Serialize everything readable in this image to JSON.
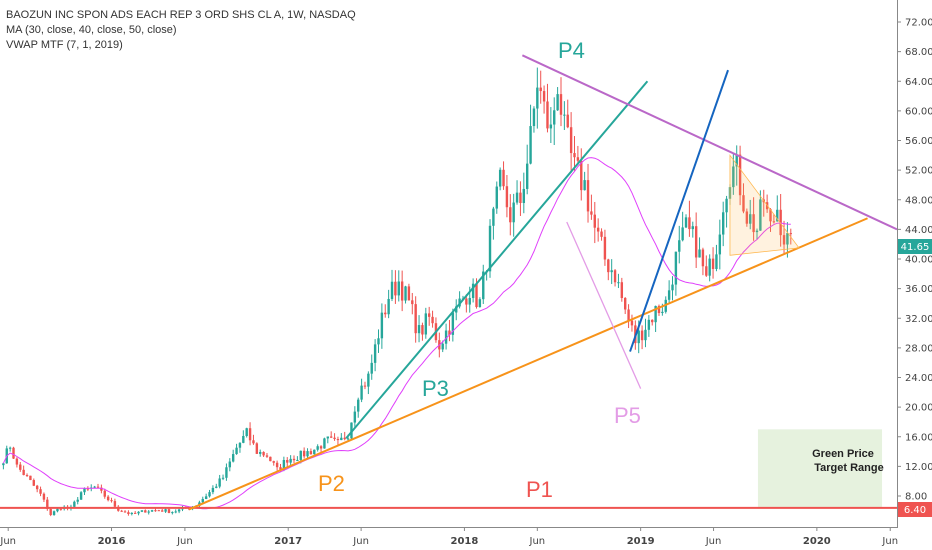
{
  "legend": {
    "symbol_line": "BAOZUN INC SPON ADS EACH REP 3 ORD SHS CL A, 1W, NASDAQ",
    "ma_line": "MA (30, close, 40, close, 50, close)",
    "vwap_line": "VWAP MTF (7, 1, 2019)"
  },
  "price_badges": {
    "last_price": "41.65",
    "p1_price": "6.40",
    "last_color": "#26a69a",
    "p1_color": "#ef5350"
  },
  "annotations": {
    "p1": "P1",
    "p2": "P2",
    "p3": "P3",
    "p4": "P4",
    "p5": "P5",
    "target_title_1": "Green Price",
    "target_title_2": "Target Range"
  },
  "colors": {
    "up": "#26a69a",
    "down": "#ef5350",
    "orange": "#f7931a",
    "teal": "#26a69a",
    "blue": "#1565c0",
    "purple": "#ba68c8",
    "magenta": "#e040fb",
    "pink": "#e39ce6",
    "red": "#ef5350",
    "target": "#e6f2de"
  },
  "chart_data": {
    "type": "candlestick",
    "title": "BAOZUN INC SPON ADS EACH REP 3 ORD SHS CL A, 1W, NASDAQ",
    "y_axis": {
      "side": "right",
      "range": [
        3,
        74
      ],
      "ticks": [
        "8.00",
        "12.00",
        "16.00",
        "20.00",
        "24.00",
        "28.00",
        "32.00",
        "36.00",
        "40.00",
        "44.00",
        "48.00",
        "52.00",
        "56.00",
        "60.00",
        "64.00",
        "68.00",
        "72.00"
      ]
    },
    "x_axis": {
      "range": [
        "2015-05-15",
        "2020-06-15"
      ],
      "ticks": [
        {
          "label": "Jun",
          "date": "2015-06-01",
          "bold": false
        },
        {
          "label": "2016",
          "date": "2016-01-01",
          "bold": true
        },
        {
          "label": "Jun",
          "date": "2016-06-01",
          "bold": false
        },
        {
          "label": "2017",
          "date": "2017-01-01",
          "bold": true
        },
        {
          "label": "Jun",
          "date": "2017-06-01",
          "bold": false
        },
        {
          "label": "2018",
          "date": "2018-01-01",
          "bold": true
        },
        {
          "label": "Jun",
          "date": "2018-06-01",
          "bold": false
        },
        {
          "label": "2019",
          "date": "2019-01-01",
          "bold": true
        },
        {
          "label": "Jun",
          "date": "2019-06-01",
          "bold": false
        },
        {
          "label": "2020",
          "date": "2020-01-01",
          "bold": true
        },
        {
          "label": "Jun",
          "date": "2020-06-01",
          "bold": false
        }
      ]
    },
    "grid": false,
    "last_price": 41.65,
    "price_path": [
      [
        "2015-05-22",
        13
      ],
      [
        "2015-06-05",
        14.8
      ],
      [
        "2015-06-19",
        12
      ],
      [
        "2015-07-10",
        10.5
      ],
      [
        "2015-08-07",
        8.2
      ],
      [
        "2015-08-28",
        5.5
      ],
      [
        "2015-09-18",
        6.5
      ],
      [
        "2015-10-09",
        6.3
      ],
      [
        "2015-10-30",
        8.5
      ],
      [
        "2015-11-27",
        9.2
      ],
      [
        "2015-12-18",
        8
      ],
      [
        "2016-01-15",
        6.2
      ],
      [
        "2016-02-12",
        5.5
      ],
      [
        "2016-03-11",
        6
      ],
      [
        "2016-04-08",
        6.1
      ],
      [
        "2016-05-06",
        5.9
      ],
      [
        "2016-06-03",
        6.3
      ],
      [
        "2016-06-24",
        6.8
      ],
      [
        "2016-07-22",
        8.5
      ],
      [
        "2016-08-19",
        10.5
      ],
      [
        "2016-09-16",
        14.5
      ],
      [
        "2016-10-07",
        16.5
      ],
      [
        "2016-10-28",
        14
      ],
      [
        "2016-11-18",
        13.5
      ],
      [
        "2016-12-09",
        11.5
      ],
      [
        "2016-12-30",
        13
      ],
      [
        "2017-01-27",
        13.5
      ],
      [
        "2017-02-24",
        14.3
      ],
      [
        "2017-03-24",
        15.5
      ],
      [
        "2017-04-14",
        15
      ],
      [
        "2017-05-05",
        16.5
      ],
      [
        "2017-05-26",
        22
      ],
      [
        "2017-06-16",
        24
      ],
      [
        "2017-07-07",
        30
      ],
      [
        "2017-07-28",
        35
      ],
      [
        "2017-08-18",
        37
      ],
      [
        "2017-09-08",
        34
      ],
      [
        "2017-09-29",
        30
      ],
      [
        "2017-10-20",
        32
      ],
      [
        "2017-11-10",
        28.5
      ],
      [
        "2017-12-01",
        31
      ],
      [
        "2017-12-22",
        34
      ],
      [
        "2018-01-12",
        36
      ],
      [
        "2018-02-02",
        34
      ],
      [
        "2018-02-23",
        43
      ],
      [
        "2018-03-16",
        50
      ],
      [
        "2018-04-06",
        46
      ],
      [
        "2018-04-27",
        48
      ],
      [
        "2018-05-18",
        56
      ],
      [
        "2018-06-01",
        64
      ],
      [
        "2018-06-15",
        60
      ],
      [
        "2018-06-29",
        57
      ],
      [
        "2018-07-13",
        64
      ],
      [
        "2018-07-27",
        57
      ],
      [
        "2018-08-17",
        52
      ],
      [
        "2018-09-07",
        50
      ],
      [
        "2018-09-28",
        44
      ],
      [
        "2018-10-19",
        40
      ],
      [
        "2018-11-09",
        38
      ],
      [
        "2018-11-30",
        33
      ],
      [
        "2018-12-21",
        29
      ],
      [
        "2019-01-11",
        31
      ],
      [
        "2019-02-01",
        33
      ],
      [
        "2019-02-22",
        34
      ],
      [
        "2019-03-15",
        40
      ],
      [
        "2019-04-05",
        44
      ],
      [
        "2019-04-26",
        42
      ],
      [
        "2019-05-17",
        37
      ],
      [
        "2019-06-07",
        42
      ],
      [
        "2019-06-21",
        48
      ],
      [
        "2019-07-05",
        52
      ],
      [
        "2019-07-19",
        52
      ],
      [
        "2019-08-09",
        46
      ],
      [
        "2019-08-30",
        44
      ],
      [
        "2019-09-13",
        48
      ],
      [
        "2019-09-27",
        44
      ],
      [
        "2019-10-11",
        47
      ],
      [
        "2019-10-25",
        43
      ],
      [
        "2019-11-08",
        41.65
      ]
    ],
    "overlays": [
      {
        "label": "P1",
        "start": [
          "2015-05-15",
          6.4
        ],
        "end": [
          "2020-06-15",
          6.4
        ]
      },
      {
        "label": "P2",
        "start": [
          "2016-06-10",
          6.2
        ],
        "end": [
          "2020-04-15",
          45.5
        ]
      },
      {
        "label": "P3",
        "start": [
          "2017-05-01",
          15.8
        ],
        "end": [
          "2019-01-15",
          64
        ]
      },
      {
        "label": "P4",
        "start": [
          "2018-05-01",
          67.5
        ],
        "end": [
          "2020-06-15",
          44
        ]
      },
      {
        "label": "P5",
        "start": [
          "2018-08-01",
          45
        ],
        "end": [
          "2019-01-01",
          22.5
        ]
      },
      {
        "label": "",
        "start": [
          "2018-12-10",
          27.5
        ],
        "end": [
          "2019-07-01",
          65.5
        ]
      }
    ],
    "target_range": {
      "label": "Green Price Target Range",
      "x0": "2019-09-01",
      "x1": "2020-05-15",
      "y0": 6.5,
      "y1": 17
    }
  }
}
